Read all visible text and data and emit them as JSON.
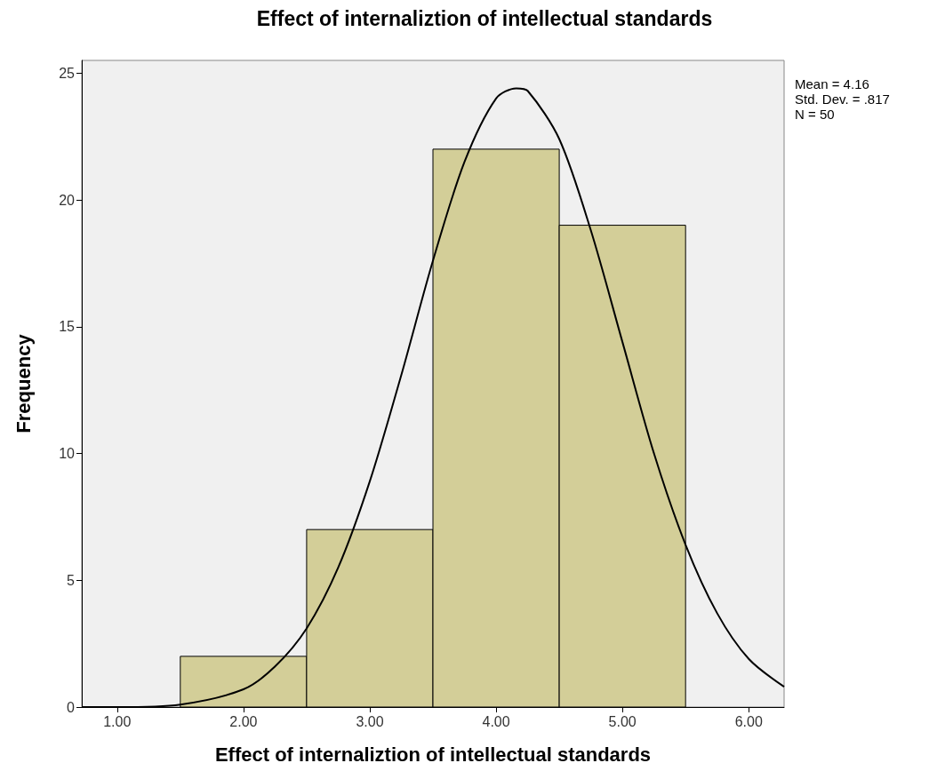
{
  "chart_data": {
    "type": "histogram",
    "title": "Effect of internaliztion of intellectual standards",
    "xlabel": "Effect of internaliztion of intellectual standards",
    "ylabel": "Frequency",
    "annotations": [
      "Mean = 4.16",
      "Std. Dev. = .817",
      "N = 50"
    ],
    "series": [
      {
        "bins": [
          1.5,
          2.5,
          3.5,
          4.5,
          5.5
        ],
        "values": [
          2,
          7,
          22,
          19
        ],
        "color": "#d3ce98"
      },
      {
        "type": "line",
        "color": "#000000",
        "x": [
          0.72,
          1.0,
          1.5,
          2.0,
          2.25,
          2.5,
          2.75,
          3.0,
          3.25,
          3.5,
          3.75,
          4.0,
          4.16,
          4.25,
          4.5,
          4.75,
          5.0,
          5.25,
          5.5,
          5.75,
          6.0,
          6.28
        ],
        "values": [
          0.0,
          0.0,
          0.1,
          0.7,
          1.6,
          3.1,
          5.5,
          8.9,
          13.1,
          17.6,
          21.5,
          24.0,
          24.4,
          24.3,
          22.4,
          18.8,
          14.4,
          10.0,
          6.4,
          3.7,
          1.9,
          0.8
        ]
      }
    ],
    "xlim": [
      0.72,
      6.28
    ],
    "xticks": [
      {
        "value": 1,
        "label": "1.00"
      },
      {
        "value": 2,
        "label": "2.00"
      },
      {
        "value": 3,
        "label": "3.00"
      },
      {
        "value": 4,
        "label": "4.00"
      },
      {
        "value": 5,
        "label": "5.00"
      },
      {
        "value": 6,
        "label": "6.00"
      }
    ],
    "ylim": [
      0,
      25.5
    ],
    "yticks": [
      0,
      5,
      10,
      15,
      20,
      25
    ],
    "grid": false,
    "marker": "none",
    "line_style": "solid"
  }
}
